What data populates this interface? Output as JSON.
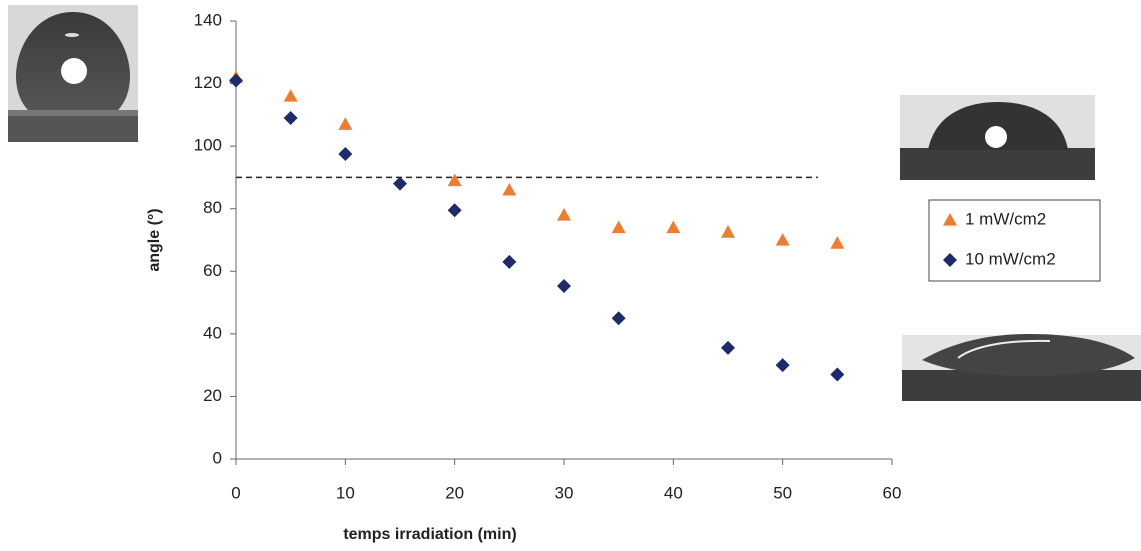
{
  "chart_data": {
    "type": "scatter",
    "x_label": "temps irradiation  (min)",
    "y_label": "angle (°)",
    "xlim": [
      0,
      60
    ],
    "xticks": [
      0,
      10,
      20,
      30,
      40,
      50,
      60
    ],
    "ylim": [
      0,
      140
    ],
    "yticks": [
      0,
      20,
      40,
      60,
      80,
      100,
      120,
      140
    ],
    "hline": 90,
    "series": [
      {
        "name": "1 mW/cm2",
        "color": "#ed7d31",
        "marker": "triangle",
        "x": [
          0,
          5,
          10,
          20,
          25,
          30,
          35,
          40,
          45,
          50,
          55
        ],
        "values": [
          122,
          116,
          107,
          89,
          86,
          78,
          74,
          74,
          72.5,
          70,
          69
        ]
      },
      {
        "name": "10 mW/cm2",
        "color": "#1f2a6b",
        "marker": "diamond",
        "x": [
          0,
          5,
          10,
          15,
          20,
          25,
          30,
          35,
          45,
          50,
          55
        ],
        "values": [
          121,
          109,
          97.5,
          88,
          79.5,
          63,
          55.3,
          45,
          35.5,
          30,
          27
        ]
      }
    ]
  }
}
